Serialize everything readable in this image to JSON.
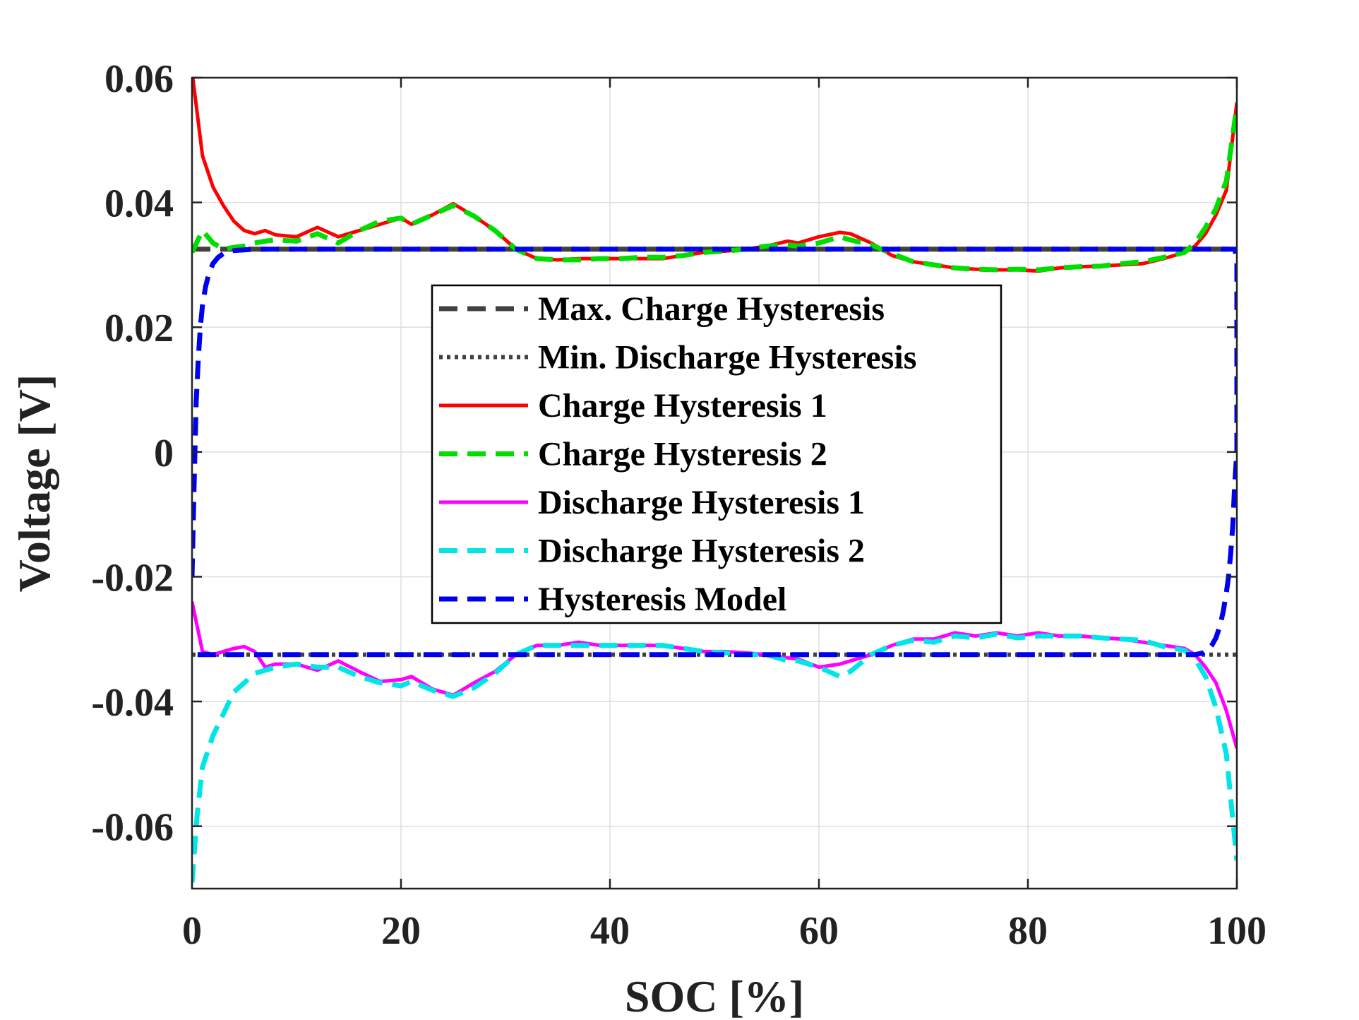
{
  "chart_data": {
    "type": "line",
    "title": "",
    "xlabel": "SOC [%]",
    "ylabel": "Voltage [V]",
    "xlim": [
      0,
      100
    ],
    "ylim": [
      -0.07,
      0.06
    ],
    "xticks": [
      0,
      20,
      40,
      60,
      80,
      100
    ],
    "xtick_labels": [
      "0",
      "20",
      "40",
      "60",
      "80",
      "100"
    ],
    "yticks": [
      0.06,
      0.04,
      0.02,
      0,
      -0.02,
      -0.04,
      -0.06
    ],
    "ytick_labels": [
      "0.06",
      "0.04",
      "0.02",
      "0",
      "-0.02",
      "-0.04",
      "-0.06"
    ],
    "grid": true,
    "legend_position": "center",
    "series": [
      {
        "name": "Max. Charge Hysteresis",
        "color": "#404040",
        "dash": "dashed",
        "x": [
          0,
          100
        ],
        "y": [
          0.0325,
          0.0325
        ]
      },
      {
        "name": "Min. Discharge Hysteresis",
        "color": "#404040",
        "dash": "dotted",
        "x": [
          0,
          100
        ],
        "y": [
          -0.0325,
          -0.0325
        ]
      },
      {
        "name": "Charge Hysteresis 1",
        "color": "#ff0000",
        "dash": "solid",
        "x": [
          0,
          1,
          2,
          3,
          4,
          5,
          6,
          7,
          8,
          10,
          12,
          14,
          16,
          18,
          20,
          21,
          23,
          25,
          27,
          29,
          31,
          33,
          35,
          37,
          39,
          41,
          43,
          45,
          47,
          49,
          51,
          53,
          55,
          57,
          58,
          60,
          62,
          63,
          65,
          67,
          69,
          71,
          73,
          75,
          77,
          79,
          81,
          83,
          85,
          87,
          89,
          91,
          93,
          95,
          96,
          97,
          98,
          99,
          100
        ],
        "y": [
          0.061,
          0.0475,
          0.0425,
          0.0395,
          0.037,
          0.0355,
          0.035,
          0.0355,
          0.0348,
          0.0345,
          0.036,
          0.0345,
          0.0355,
          0.0365,
          0.0375,
          0.0365,
          0.038,
          0.0398,
          0.0378,
          0.0355,
          0.0325,
          0.031,
          0.0308,
          0.031,
          0.031,
          0.031,
          0.031,
          0.031,
          0.0315,
          0.032,
          0.0322,
          0.0325,
          0.033,
          0.0338,
          0.0335,
          0.0345,
          0.0352,
          0.035,
          0.0335,
          0.0315,
          0.0305,
          0.03,
          0.0295,
          0.0293,
          0.0292,
          0.0292,
          0.029,
          0.0295,
          0.0297,
          0.0298,
          0.03,
          0.0302,
          0.031,
          0.032,
          0.033,
          0.035,
          0.038,
          0.042,
          0.056
        ]
      },
      {
        "name": "Charge Hysteresis 2",
        "color": "#00dd00",
        "dash": "dashed",
        "x": [
          0,
          1,
          2,
          3,
          4,
          5,
          6,
          7,
          8,
          10,
          12,
          14,
          16,
          18,
          20,
          21,
          23,
          25,
          27,
          29,
          31,
          33,
          35,
          37,
          39,
          41,
          43,
          45,
          47,
          49,
          51,
          53,
          55,
          57,
          58,
          60,
          62,
          63,
          65,
          67,
          69,
          71,
          73,
          75,
          77,
          79,
          81,
          83,
          85,
          87,
          89,
          91,
          93,
          95,
          96,
          97,
          98,
          99,
          100
        ],
        "y": [
          0.032,
          0.0355,
          0.0335,
          0.0325,
          0.0328,
          0.033,
          0.0335,
          0.0338,
          0.034,
          0.0338,
          0.035,
          0.0335,
          0.0355,
          0.037,
          0.0375,
          0.0365,
          0.038,
          0.0395,
          0.0378,
          0.0355,
          0.0325,
          0.031,
          0.0308,
          0.0308,
          0.031,
          0.031,
          0.0312,
          0.0312,
          0.0315,
          0.032,
          0.0322,
          0.0325,
          0.033,
          0.0332,
          0.033,
          0.0335,
          0.0345,
          0.034,
          0.0332,
          0.0318,
          0.0305,
          0.03,
          0.0295,
          0.0293,
          0.0292,
          0.0293,
          0.0292,
          0.0295,
          0.0297,
          0.0298,
          0.0302,
          0.0305,
          0.0312,
          0.032,
          0.0335,
          0.036,
          0.039,
          0.0435,
          0.0555
        ]
      },
      {
        "name": "Discharge Hysteresis 1",
        "color": "#ff00ff",
        "dash": "solid",
        "x": [
          0,
          1,
          2,
          3,
          4,
          5,
          6,
          7,
          8,
          10,
          12,
          14,
          16,
          18,
          20,
          21,
          23,
          25,
          27,
          29,
          31,
          33,
          35,
          37,
          39,
          41,
          43,
          45,
          47,
          49,
          51,
          53,
          55,
          57,
          58,
          60,
          62,
          63,
          65,
          67,
          69,
          71,
          73,
          75,
          77,
          79,
          81,
          83,
          85,
          87,
          89,
          91,
          93,
          95,
          96,
          97,
          98,
          99,
          100
        ],
        "y": [
          -0.024,
          -0.032,
          -0.0325,
          -0.032,
          -0.0315,
          -0.0312,
          -0.032,
          -0.0345,
          -0.034,
          -0.034,
          -0.035,
          -0.0335,
          -0.0352,
          -0.0368,
          -0.0365,
          -0.036,
          -0.038,
          -0.039,
          -0.037,
          -0.0352,
          -0.0325,
          -0.031,
          -0.031,
          -0.0305,
          -0.031,
          -0.031,
          -0.031,
          -0.031,
          -0.0315,
          -0.032,
          -0.032,
          -0.0322,
          -0.0325,
          -0.033,
          -0.0332,
          -0.0345,
          -0.034,
          -0.0335,
          -0.0325,
          -0.031,
          -0.03,
          -0.03,
          -0.029,
          -0.0295,
          -0.029,
          -0.0295,
          -0.029,
          -0.0295,
          -0.0295,
          -0.0298,
          -0.03,
          -0.0305,
          -0.031,
          -0.0315,
          -0.0325,
          -0.0345,
          -0.037,
          -0.0415,
          -0.0475
        ]
      },
      {
        "name": "Discharge Hysteresis 2",
        "color": "#00e5e5",
        "dash": "dashed",
        "x": [
          0,
          0.5,
          1,
          2,
          3,
          4,
          5,
          6,
          7,
          8,
          10,
          12,
          14,
          16,
          18,
          20,
          21,
          23,
          25,
          27,
          29,
          31,
          33,
          35,
          37,
          39,
          41,
          43,
          45,
          47,
          49,
          51,
          53,
          55,
          57,
          58,
          60,
          62,
          63,
          65,
          67,
          69,
          71,
          73,
          75,
          77,
          79,
          81,
          83,
          85,
          87,
          89,
          91,
          93,
          95,
          96,
          97,
          98,
          99,
          100
        ],
        "y": [
          -0.069,
          -0.058,
          -0.0505,
          -0.0455,
          -0.042,
          -0.0385,
          -0.037,
          -0.0355,
          -0.035,
          -0.0345,
          -0.034,
          -0.0345,
          -0.0345,
          -0.036,
          -0.037,
          -0.0375,
          -0.0368,
          -0.0382,
          -0.0392,
          -0.0378,
          -0.0355,
          -0.0325,
          -0.031,
          -0.031,
          -0.031,
          -0.031,
          -0.031,
          -0.031,
          -0.031,
          -0.0315,
          -0.032,
          -0.0322,
          -0.0325,
          -0.0325,
          -0.0335,
          -0.0335,
          -0.0345,
          -0.036,
          -0.0352,
          -0.0325,
          -0.031,
          -0.0302,
          -0.0305,
          -0.0295,
          -0.0298,
          -0.0292,
          -0.0298,
          -0.0295,
          -0.0295,
          -0.0295,
          -0.0298,
          -0.03,
          -0.0302,
          -0.0312,
          -0.0318,
          -0.0332,
          -0.036,
          -0.041,
          -0.0485,
          -0.0655
        ]
      },
      {
        "name": "Hysteresis Model",
        "color": "#0000ee",
        "dash": "dashed",
        "x": [
          0,
          0.2,
          0.4,
          0.6,
          0.8,
          1,
          1.3,
          1.6,
          2,
          2.5,
          3,
          3.5,
          4,
          5,
          6,
          8,
          10,
          20,
          40,
          60,
          80,
          95,
          97,
          97.5,
          98,
          98.5,
          99,
          99.3,
          99.6,
          99.8,
          100,
          100,
          99.8,
          99.6,
          99.4,
          99.2,
          99,
          98.7,
          98.4,
          98,
          97.6,
          97.2,
          96.8,
          96,
          94,
          80,
          60,
          40,
          20,
          5,
          2,
          1,
          0.5,
          0
        ],
        "y": [
          -0.02,
          -0.005,
          0.008,
          0.015,
          0.02,
          0.0235,
          0.0265,
          0.0285,
          0.0302,
          0.0312,
          0.0318,
          0.0321,
          0.0323,
          0.0324,
          0.0325,
          0.0325,
          0.0325,
          0.0325,
          0.0325,
          0.0325,
          0.0325,
          0.0325,
          0.0325,
          0.0325,
          0.0325,
          0.0325,
          0.0325,
          0.0325,
          0.0325,
          0.0325,
          0.031,
          0.0,
          -0.005,
          -0.012,
          -0.0165,
          -0.02,
          -0.0225,
          -0.0255,
          -0.0278,
          -0.0298,
          -0.031,
          -0.0318,
          -0.0322,
          -0.0325,
          -0.0325,
          -0.0325,
          -0.0325,
          -0.0325,
          -0.0325,
          -0.0325,
          -0.0325,
          -0.0325,
          -0.0325,
          -0.0325
        ]
      }
    ]
  }
}
